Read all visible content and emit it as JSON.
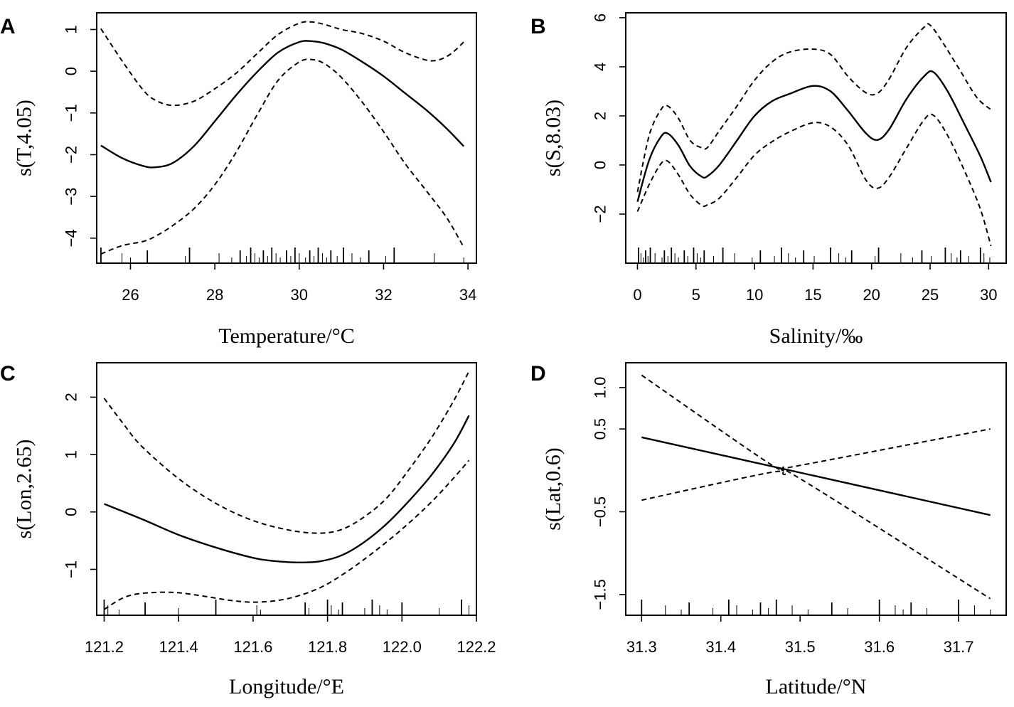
{
  "figure_title": "",
  "chart_data": [
    {
      "type": "line",
      "panel_label": "A",
      "title": "",
      "xlabel": "Temperature/°C",
      "ylabel": "s(T,4.05)",
      "xlim": [
        25.2,
        34.2
      ],
      "ylim": [
        -4.6,
        1.4
      ],
      "x_ticks": [
        26,
        28,
        30,
        32,
        34
      ],
      "x_tick_labels": [
        "26",
        "28",
        "30",
        "32",
        "34"
      ],
      "y_ticks": [
        -4,
        -3,
        -2,
        -1,
        0,
        1
      ],
      "y_tick_labels": [
        "−4",
        "−3",
        "−2",
        "−1",
        "0",
        "1"
      ],
      "series": [
        {
          "name": "fit",
          "style": "solid",
          "x": [
            25.3,
            25.8,
            26.3,
            26.6,
            27.0,
            27.5,
            28.0,
            28.5,
            29.0,
            29.5,
            30.0,
            30.3,
            30.6,
            31.0,
            31.5,
            32.0,
            32.5,
            33.0,
            33.5,
            33.9
          ],
          "y": [
            -1.78,
            -2.08,
            -2.27,
            -2.3,
            -2.2,
            -1.8,
            -1.2,
            -0.58,
            -0.02,
            0.45,
            0.7,
            0.72,
            0.67,
            0.52,
            0.22,
            -0.12,
            -0.52,
            -0.92,
            -1.38,
            -1.8
          ]
        },
        {
          "name": "upper 95% CI",
          "style": "dashed",
          "x": [
            25.3,
            25.8,
            26.3,
            26.6,
            27.0,
            27.5,
            28.0,
            28.5,
            29.0,
            29.5,
            30.0,
            30.3,
            30.6,
            31.0,
            31.5,
            32.0,
            32.5,
            33.0,
            33.3,
            33.6,
            33.9
          ],
          "y": [
            1.02,
            0.25,
            -0.45,
            -0.7,
            -0.82,
            -0.72,
            -0.42,
            -0.05,
            0.42,
            0.88,
            1.15,
            1.18,
            1.12,
            1.0,
            0.9,
            0.72,
            0.45,
            0.27,
            0.27,
            0.42,
            0.7
          ]
        },
        {
          "name": "lower 95% CI",
          "style": "dashed",
          "x": [
            25.3,
            25.8,
            26.3,
            26.6,
            27.0,
            27.5,
            28.0,
            28.5,
            29.0,
            29.5,
            30.0,
            30.3,
            30.6,
            31.0,
            31.5,
            32.0,
            32.5,
            33.0,
            33.5,
            33.9
          ],
          "y": [
            -4.38,
            -4.18,
            -4.08,
            -3.95,
            -3.7,
            -3.3,
            -2.72,
            -1.95,
            -1.05,
            -0.22,
            0.22,
            0.28,
            0.18,
            -0.15,
            -0.75,
            -1.45,
            -2.2,
            -2.85,
            -3.52,
            -4.22
          ]
        }
      ],
      "rug": [
        25.3,
        25.8,
        26.0,
        26.4,
        27.3,
        27.4,
        28.1,
        28.4,
        28.6,
        28.75,
        28.85,
        28.95,
        29.05,
        29.15,
        29.25,
        29.35,
        29.45,
        29.55,
        29.7,
        29.8,
        29.9,
        30.0,
        30.15,
        30.25,
        30.35,
        30.45,
        30.55,
        30.65,
        30.75,
        30.9,
        31.05,
        31.25,
        31.45,
        31.65,
        32.05,
        32.25,
        33.2,
        33.9
      ]
    },
    {
      "type": "line",
      "panel_label": "B",
      "title": "",
      "xlabel": "Salinity/‰",
      "ylabel": "s(S,8.03)",
      "xlim": [
        -1,
        31.5
      ],
      "ylim": [
        -4.0,
        6.2
      ],
      "x_ticks": [
        0,
        5,
        10,
        15,
        20,
        25,
        30
      ],
      "x_tick_labels": [
        "0",
        "5",
        "10",
        "15",
        "20",
        "25",
        "30"
      ],
      "y_ticks": [
        -2,
        0,
        2,
        4,
        6
      ],
      "y_tick_labels": [
        "−2",
        "0",
        "2",
        "4",
        "6"
      ],
      "series": [
        {
          "name": "fit",
          "style": "solid",
          "x": [
            0,
            1.0,
            2.0,
            2.6,
            3.5,
            4.5,
            5.5,
            6.0,
            7.0,
            8.5,
            10,
            11.5,
            13,
            15,
            16.5,
            18,
            19.5,
            20.5,
            21.5,
            23,
            24.5,
            25.3,
            26.5,
            28,
            29.3,
            30.2
          ],
          "y": [
            -1.5,
            0.2,
            1.15,
            1.28,
            0.8,
            -0.05,
            -0.48,
            -0.45,
            0.0,
            1.0,
            2.0,
            2.6,
            2.9,
            3.22,
            3.0,
            2.2,
            1.3,
            1.02,
            1.45,
            2.7,
            3.62,
            3.78,
            3.0,
            1.6,
            0.35,
            -0.7
          ]
        },
        {
          "name": "upper 95% CI",
          "style": "dashed",
          "x": [
            0,
            1.0,
            2.0,
            2.6,
            3.5,
            4.5,
            5.5,
            6.0,
            7.0,
            8.5,
            10,
            11.5,
            13,
            15,
            16.5,
            18,
            19.5,
            20.5,
            21.5,
            23,
            24.5,
            25.0,
            26.0,
            27.5,
            29,
            30.2
          ],
          "y": [
            -1.1,
            1.2,
            2.25,
            2.4,
            1.9,
            1.0,
            0.7,
            0.72,
            1.4,
            2.4,
            3.45,
            4.2,
            4.6,
            4.72,
            4.5,
            3.6,
            2.95,
            2.92,
            3.5,
            4.8,
            5.62,
            5.7,
            5.05,
            3.9,
            2.75,
            2.25
          ]
        },
        {
          "name": "lower 95% CI",
          "style": "dashed",
          "x": [
            0,
            1.0,
            2.0,
            2.6,
            3.5,
            4.5,
            5.5,
            6.0,
            7.0,
            8.5,
            10,
            11.5,
            13,
            15,
            16.5,
            18,
            19.5,
            20.5,
            21.5,
            23,
            24.5,
            25.3,
            26.5,
            28,
            29.3,
            30.2
          ],
          "y": [
            -1.9,
            -0.8,
            0.05,
            0.15,
            -0.4,
            -1.2,
            -1.65,
            -1.62,
            -1.35,
            -0.5,
            0.4,
            0.95,
            1.35,
            1.72,
            1.55,
            0.8,
            -0.6,
            -0.95,
            -0.5,
            0.7,
            1.85,
            2.02,
            1.2,
            -0.3,
            -1.8,
            -3.3
          ]
        }
      ],
      "rug": [
        0.1,
        0.3,
        0.5,
        0.7,
        0.9,
        1.1,
        1.5,
        2.1,
        2.3,
        2.6,
        2.9,
        3.2,
        3.5,
        4.0,
        4.3,
        4.8,
        5.1,
        5.4,
        5.7,
        6.5,
        7.3,
        8.3,
        9.8,
        10.5,
        11.7,
        12.3,
        12.9,
        13.5,
        14.2,
        15.1,
        16.5,
        17.2,
        17.8,
        18.3,
        20.3,
        20.6,
        22.5,
        23.5,
        24.3,
        25.1,
        26.3,
        26.8,
        27.3,
        27.6,
        28.3,
        29.3,
        29.6,
        30.1
      ]
    },
    {
      "type": "line",
      "panel_label": "C",
      "title": "",
      "xlabel": "Longitude/°E",
      "ylabel": "s(Lon,2.65)",
      "xlim": [
        121.18,
        122.2
      ],
      "ylim": [
        -1.8,
        2.6
      ],
      "x_ticks": [
        121.2,
        121.4,
        121.6,
        121.8,
        122.0,
        122.2
      ],
      "x_tick_labels": [
        "121.2",
        "121.4",
        "121.6",
        "121.8",
        "122.0",
        "122.2"
      ],
      "y_ticks": [
        -1,
        0,
        1,
        2
      ],
      "y_tick_labels": [
        "−1",
        "0",
        "1",
        "2"
      ],
      "series": [
        {
          "name": "fit",
          "style": "solid",
          "x": [
            121.2,
            121.3,
            121.4,
            121.5,
            121.6,
            121.65,
            121.72,
            121.78,
            121.84,
            121.9,
            121.96,
            122.02,
            122.08,
            122.14,
            122.18
          ],
          "y": [
            0.14,
            -0.12,
            -0.4,
            -0.62,
            -0.8,
            -0.85,
            -0.88,
            -0.86,
            -0.75,
            -0.52,
            -0.2,
            0.2,
            0.65,
            1.2,
            1.68
          ]
        },
        {
          "name": "upper 95% CI",
          "style": "dashed",
          "x": [
            121.2,
            121.25,
            121.3,
            121.4,
            121.5,
            121.6,
            121.7,
            121.78,
            121.84,
            121.9,
            121.96,
            122.02,
            122.08,
            122.14,
            122.18
          ],
          "y": [
            1.98,
            1.55,
            1.15,
            0.58,
            0.15,
            -0.15,
            -0.32,
            -0.37,
            -0.3,
            -0.08,
            0.25,
            0.75,
            1.3,
            1.95,
            2.45
          ]
        },
        {
          "name": "lower 95% CI",
          "style": "dashed",
          "x": [
            121.2,
            121.25,
            121.3,
            121.38,
            121.45,
            121.55,
            121.62,
            121.7,
            121.78,
            121.85,
            121.92,
            122.0,
            122.08,
            122.14,
            122.18
          ],
          "y": [
            -1.7,
            -1.5,
            -1.42,
            -1.4,
            -1.45,
            -1.55,
            -1.57,
            -1.5,
            -1.32,
            -1.05,
            -0.72,
            -0.3,
            0.18,
            0.6,
            0.9
          ]
        },
        {
          "name": "",
          "style": "none",
          "x": [],
          "y": []
        }
      ],
      "rug": [
        121.2,
        121.21,
        121.24,
        121.31,
        121.4,
        121.5,
        121.61,
        121.62,
        121.74,
        121.75,
        121.8,
        121.81,
        121.83,
        121.84,
        121.9,
        121.92,
        121.94,
        121.96,
        122.0,
        122.1,
        122.16,
        122.18
      ]
    },
    {
      "type": "line",
      "panel_label": "D",
      "title": "",
      "xlabel": "Latitude/°N",
      "ylabel": "s(Lat,0.6)",
      "xlim": [
        31.28,
        31.76
      ],
      "ylim": [
        -1.75,
        1.3
      ],
      "x_ticks": [
        31.3,
        31.4,
        31.5,
        31.6,
        31.7
      ],
      "x_tick_labels": [
        "31.3",
        "31.4",
        "31.5",
        "31.6",
        "31.7"
      ],
      "y_ticks": [
        -1.5,
        -0.5,
        0.5,
        1.0
      ],
      "y_tick_labels": [
        "−1.5",
        "−0.5",
        "0.5",
        "1.0"
      ],
      "series": [
        {
          "name": "fit",
          "style": "solid",
          "x": [
            31.3,
            31.74
          ],
          "y": [
            0.4,
            -0.54
          ]
        },
        {
          "name": "upper 95% CI",
          "style": "dashed",
          "x": [
            31.3,
            31.46,
            31.48,
            31.5,
            31.74
          ],
          "y": [
            1.15,
            0.09,
            0.04,
            0.06,
            0.5
          ]
        },
        {
          "name": "lower 95% CI",
          "style": "dashed",
          "x": [
            31.3,
            31.46,
            31.48,
            31.5,
            31.74
          ],
          "y": [
            -0.36,
            -0.03,
            -0.05,
            -0.1,
            -1.55
          ]
        }
      ],
      "rug": [
        31.3,
        31.33,
        31.35,
        31.36,
        31.39,
        31.41,
        31.42,
        31.44,
        31.45,
        31.46,
        31.47,
        31.49,
        31.51,
        31.54,
        31.56,
        31.6,
        31.62,
        31.63,
        31.64,
        31.66,
        31.7,
        31.72,
        31.74
      ]
    }
  ]
}
